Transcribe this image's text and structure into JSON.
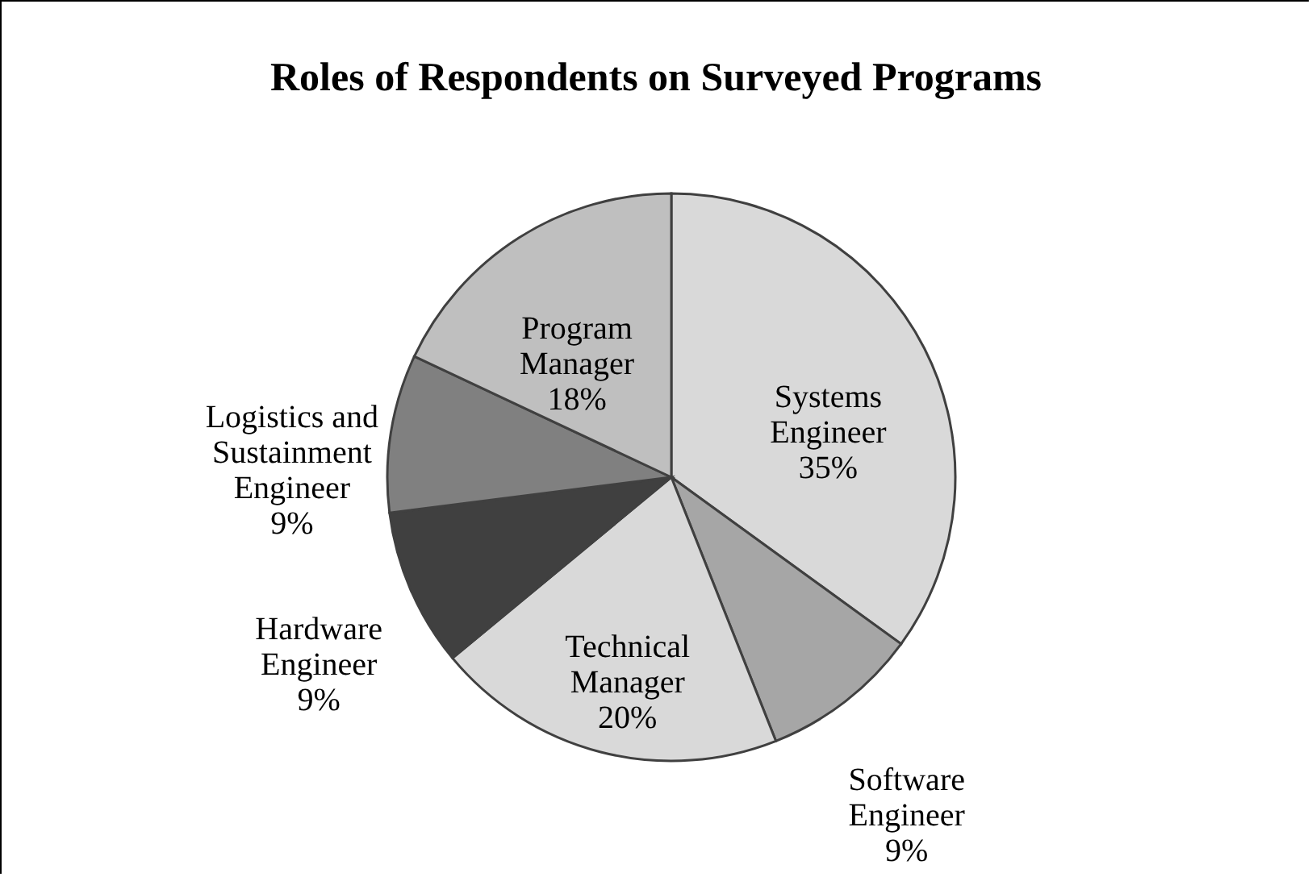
{
  "chart_data": {
    "type": "pie",
    "title": "Roles of Respondents on Surveyed Programs",
    "categories": [
      "Systems Engineer",
      "Software Engineer",
      "Technical Manager",
      "Hardware Engineer",
      "Logistics and Sustainment Engineer",
      "Program Manager"
    ],
    "values": [
      35,
      9,
      20,
      9,
      9,
      18
    ],
    "value_labels": [
      "35%",
      "9%",
      "20%",
      "9%",
      "9%",
      "18%"
    ],
    "colors": [
      "#d9d9d9",
      "#a6a6a6",
      "#d9d9d9",
      "#404040",
      "#808080",
      "#bfbfbf"
    ],
    "legend": false
  }
}
